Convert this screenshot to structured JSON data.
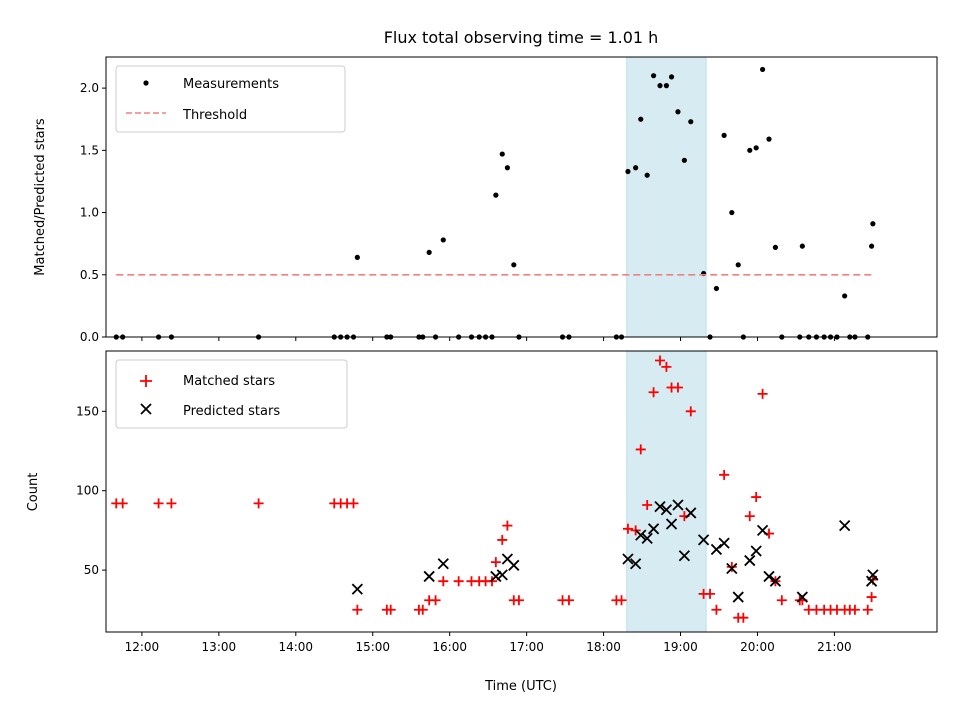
{
  "chart_data": [
    {
      "type": "scatter",
      "title": "Flux total observing time = 1.01 h",
      "xlabel": "",
      "ylabel": "Matched/Predicted stars",
      "xlim": [
        "11:32",
        "22:20"
      ],
      "ylim": [
        0,
        2.25
      ],
      "yticks": [
        "0.0",
        "0.5",
        "1.0",
        "1.5",
        "2.0"
      ],
      "highlight_span": {
        "start": "18:18",
        "end": "19:20",
        "color": "#add8e6"
      },
      "legend": {
        "position": "top-left",
        "entries": [
          "Measurements",
          "Threshold"
        ]
      },
      "series": [
        {
          "name": "Measurements",
          "marker": "dot",
          "color": "#000000",
          "points": [
            [
              "11:40",
              0
            ],
            [
              "11:45",
              0
            ],
            [
              "12:13",
              0
            ],
            [
              "12:23",
              0
            ],
            [
              "13:31",
              0
            ],
            [
              "14:30",
              0
            ],
            [
              "14:35",
              0
            ],
            [
              "14:40",
              0
            ],
            [
              "14:45",
              0
            ],
            [
              "14:48",
              0.64
            ],
            [
              "15:11",
              0
            ],
            [
              "15:14",
              0
            ],
            [
              "15:36",
              0
            ],
            [
              "15:39",
              0
            ],
            [
              "15:44",
              0.68
            ],
            [
              "15:49",
              0
            ],
            [
              "15:55",
              0.78
            ],
            [
              "16:07",
              0
            ],
            [
              "16:17",
              0
            ],
            [
              "16:23",
              0
            ],
            [
              "16:28",
              0
            ],
            [
              "16:33",
              0
            ],
            [
              "16:36",
              1.14
            ],
            [
              "16:41",
              1.47
            ],
            [
              "16:45",
              1.36
            ],
            [
              "16:50",
              0.58
            ],
            [
              "16:54",
              0
            ],
            [
              "17:28",
              0
            ],
            [
              "17:33",
              0
            ],
            [
              "18:10",
              0
            ],
            [
              "18:14",
              0
            ],
            [
              "18:19",
              1.33
            ],
            [
              "18:25",
              1.36
            ],
            [
              "18:29",
              1.75
            ],
            [
              "18:34",
              1.3
            ],
            [
              "18:39",
              2.1
            ],
            [
              "18:44",
              2.02
            ],
            [
              "18:49",
              2.02
            ],
            [
              "18:53",
              2.09
            ],
            [
              "18:58",
              1.81
            ],
            [
              "19:03",
              1.42
            ],
            [
              "19:08",
              1.73
            ],
            [
              "19:18",
              0.51
            ],
            [
              "19:23",
              0
            ],
            [
              "19:28",
              0.39
            ],
            [
              "19:34",
              1.62
            ],
            [
              "19:40",
              1.0
            ],
            [
              "19:45",
              0.58
            ],
            [
              "19:49",
              0
            ],
            [
              "19:54",
              1.5
            ],
            [
              "19:59",
              1.52
            ],
            [
              "20:04",
              2.15
            ],
            [
              "20:09",
              1.59
            ],
            [
              "20:14",
              0.72
            ],
            [
              "20:19",
              0
            ],
            [
              "20:33",
              0
            ],
            [
              "20:35",
              0.73
            ],
            [
              "20:40",
              0
            ],
            [
              "20:46",
              0
            ],
            [
              "20:52",
              0
            ],
            [
              "20:57",
              0
            ],
            [
              "21:02",
              0
            ],
            [
              "21:08",
              0.33
            ],
            [
              "21:12",
              0
            ],
            [
              "21:16",
              0
            ],
            [
              "21:26",
              0
            ],
            [
              "21:29",
              0.73
            ],
            [
              "21:30",
              0.91
            ]
          ]
        },
        {
          "name": "Threshold",
          "marker": "dashed-line",
          "color": "#f08080",
          "points": [
            [
              "11:40",
              0.5
            ],
            [
              "21:30",
              0.5
            ]
          ]
        }
      ]
    },
    {
      "type": "scatter",
      "title": "",
      "xlabel": "Time (UTC)",
      "ylabel": "Count",
      "xlim": [
        "11:32",
        "22:20"
      ],
      "ylim": [
        11,
        188
      ],
      "yticks": [
        "50",
        "100",
        "150"
      ],
      "xticks": [
        "12:00",
        "13:00",
        "14:00",
        "15:00",
        "16:00",
        "17:00",
        "18:00",
        "19:00",
        "20:00",
        "21:00"
      ],
      "highlight_span": {
        "start": "18:18",
        "end": "19:20",
        "color": "#add8e6"
      },
      "legend": {
        "position": "top-left",
        "entries": [
          "Matched stars",
          "Predicted stars"
        ]
      },
      "series": [
        {
          "name": "Matched stars",
          "marker": "plus",
          "color": "#ff0000",
          "points": [
            [
              "11:40",
              92
            ],
            [
              "11:45",
              92
            ],
            [
              "12:13",
              92
            ],
            [
              "12:23",
              92
            ],
            [
              "13:31",
              92
            ],
            [
              "14:30",
              92
            ],
            [
              "14:35",
              92
            ],
            [
              "14:40",
              92
            ],
            [
              "14:45",
              92
            ],
            [
              "14:48",
              25
            ],
            [
              "15:11",
              25
            ],
            [
              "15:14",
              25
            ],
            [
              "15:36",
              25
            ],
            [
              "15:39",
              25
            ],
            [
              "15:44",
              31
            ],
            [
              "15:49",
              31
            ],
            [
              "15:55",
              43
            ],
            [
              "16:07",
              43
            ],
            [
              "16:17",
              43
            ],
            [
              "16:23",
              43
            ],
            [
              "16:28",
              43
            ],
            [
              "16:33",
              43
            ],
            [
              "16:36",
              55
            ],
            [
              "16:41",
              69
            ],
            [
              "16:45",
              78
            ],
            [
              "16:50",
              31
            ],
            [
              "16:54",
              31
            ],
            [
              "17:28",
              31
            ],
            [
              "17:33",
              31
            ],
            [
              "18:10",
              31
            ],
            [
              "18:14",
              31
            ],
            [
              "18:19",
              76
            ],
            [
              "18:25",
              75
            ],
            [
              "18:29",
              126
            ],
            [
              "18:34",
              91
            ],
            [
              "18:39",
              162
            ],
            [
              "18:44",
              182
            ],
            [
              "18:49",
              178
            ],
            [
              "18:53",
              165
            ],
            [
              "18:58",
              165
            ],
            [
              "19:03",
              84
            ],
            [
              "19:08",
              150
            ],
            [
              "19:18",
              35
            ],
            [
              "19:23",
              35
            ],
            [
              "19:28",
              25
            ],
            [
              "19:34",
              110
            ],
            [
              "19:40",
              52
            ],
            [
              "19:45",
              20
            ],
            [
              "19:49",
              20
            ],
            [
              "19:54",
              84
            ],
            [
              "19:59",
              96
            ],
            [
              "20:04",
              161
            ],
            [
              "20:09",
              73
            ],
            [
              "20:14",
              43
            ],
            [
              "20:19",
              31
            ],
            [
              "20:33",
              31
            ],
            [
              "20:35",
              31
            ],
            [
              "20:40",
              25
            ],
            [
              "20:46",
              25
            ],
            [
              "20:52",
              25
            ],
            [
              "20:57",
              25
            ],
            [
              "21:02",
              25
            ],
            [
              "21:08",
              25
            ],
            [
              "21:12",
              25
            ],
            [
              "21:16",
              25
            ],
            [
              "21:26",
              25
            ],
            [
              "21:29",
              33
            ],
            [
              "21:30",
              44
            ]
          ]
        },
        {
          "name": "Predicted stars",
          "marker": "x",
          "color": "#000000",
          "points": [
            [
              "14:48",
              38
            ],
            [
              "15:44",
              46
            ],
            [
              "15:55",
              54
            ],
            [
              "16:36",
              46
            ],
            [
              "16:41",
              47
            ],
            [
              "16:45",
              57
            ],
            [
              "16:50",
              53
            ],
            [
              "18:19",
              57
            ],
            [
              "18:25",
              54
            ],
            [
              "18:29",
              72
            ],
            [
              "18:34",
              70
            ],
            [
              "18:39",
              76
            ],
            [
              "18:44",
              90
            ],
            [
              "18:49",
              88
            ],
            [
              "18:53",
              79
            ],
            [
              "18:58",
              91
            ],
            [
              "19:03",
              59
            ],
            [
              "19:08",
              86
            ],
            [
              "19:18",
              69
            ],
            [
              "19:28",
              63
            ],
            [
              "19:34",
              67
            ],
            [
              "19:40",
              51
            ],
            [
              "19:45",
              33
            ],
            [
              "19:54",
              56
            ],
            [
              "19:59",
              62
            ],
            [
              "20:04",
              75
            ],
            [
              "20:09",
              46
            ],
            [
              "20:14",
              43
            ],
            [
              "20:35",
              33
            ],
            [
              "21:08",
              78
            ],
            [
              "21:29",
              43
            ],
            [
              "21:30",
              47
            ]
          ]
        }
      ]
    }
  ]
}
